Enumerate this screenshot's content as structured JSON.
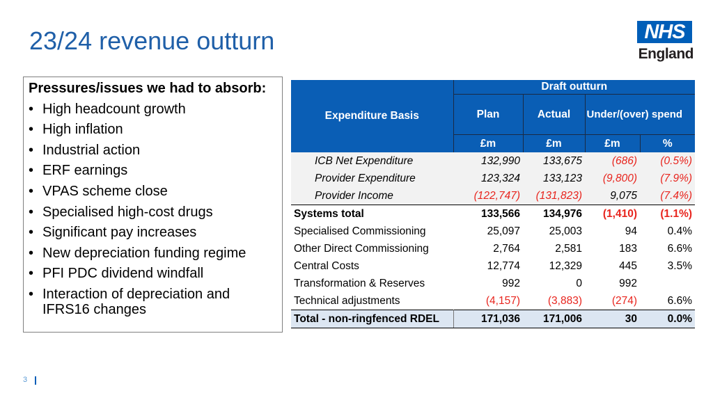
{
  "title": "23/24 revenue outturn",
  "logo": {
    "nhs": "NHS",
    "region": "England"
  },
  "pressures": {
    "heading": "Pressures/issues we had to absorb:",
    "items": [
      "High headcount growth",
      "High inflation",
      "Industrial action",
      "ERF earnings",
      "VPAS scheme close",
      "Specialised high-cost drugs",
      "Significant pay increases",
      "New depreciation funding regime",
      "PFI PDC dividend windfall",
      "Interaction of depreciation and IFRS16 changes"
    ]
  },
  "table": {
    "expenditure_basis": "Expenditure Basis",
    "draft_outturn": "Draft outturn",
    "col_plan": "Plan",
    "col_actual": "Actual",
    "col_under_over": "Under/(over) spend",
    "unit_m": "£m",
    "unit_pct": "%",
    "rows": {
      "icb": {
        "label": "ICB Net Expenditure",
        "plan": "132,990",
        "actual": "133,675",
        "var": "(686)",
        "pct": "(0.5%)"
      },
      "prov_exp": {
        "label": "Provider Expenditure",
        "plan": "123,324",
        "actual": "133,123",
        "var": "(9,800)",
        "pct": "(7.9%)"
      },
      "prov_inc": {
        "label": "Provider Income",
        "plan": "(122,747)",
        "actual": "(131,823)",
        "var": "9,075",
        "pct": "(7.4%)"
      },
      "systems": {
        "label": "Systems total",
        "plan": "133,566",
        "actual": "134,976",
        "var": "(1,410)",
        "pct": "(1.1%)"
      },
      "spec": {
        "label": "Specialised Commissioning",
        "plan": "25,097",
        "actual": "25,003",
        "var": "94",
        "pct": "0.4%"
      },
      "odc": {
        "label": "Other Direct Commissioning",
        "plan": "2,764",
        "actual": "2,581",
        "var": "183",
        "pct": "6.6%"
      },
      "central": {
        "label": "Central Costs",
        "plan": "12,774",
        "actual": "12,329",
        "var": "445",
        "pct": "3.5%"
      },
      "transf": {
        "label": "Transformation & Reserves",
        "plan": "992",
        "actual": "0",
        "var": "992",
        "pct": ""
      },
      "tech": {
        "label": "Technical adjustments",
        "plan": "(4,157)",
        "actual": "(3,883)",
        "var": "(274)",
        "pct": "6.6%"
      },
      "total": {
        "label": "Total - non-ringfenced RDEL",
        "plan": "171,036",
        "actual": "171,006",
        "var": "30",
        "pct": "0.0%"
      }
    }
  },
  "page_number": "3",
  "colors": {
    "title": "#1F5FA8",
    "header": "#0A5EB5",
    "negative": "#E8251E",
    "total_row": "#DCE6F2",
    "nhs_blue": "#005EB8"
  }
}
